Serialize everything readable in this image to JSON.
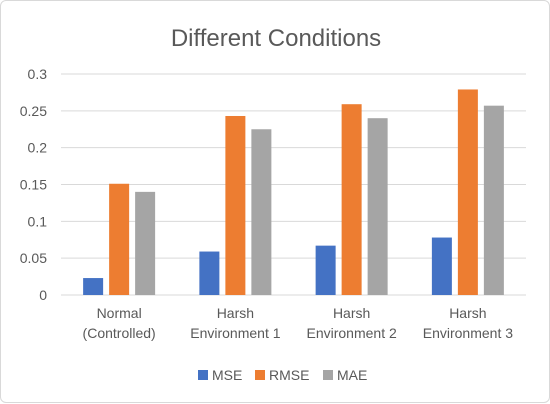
{
  "chart_data": {
    "type": "bar",
    "title": "Different Conditions",
    "categories": [
      [
        "Normal",
        "(Controlled)"
      ],
      [
        "Harsh",
        "Environment 1"
      ],
      [
        "Harsh",
        "Environment 2"
      ],
      [
        "Harsh",
        "Environment 3"
      ]
    ],
    "series": [
      {
        "name": "MSE",
        "color": "#4472c4",
        "values": [
          0.023,
          0.059,
          0.067,
          0.078
        ]
      },
      {
        "name": "RMSE",
        "color": "#ed7d31",
        "values": [
          0.151,
          0.243,
          0.259,
          0.279
        ]
      },
      {
        "name": "MAE",
        "color": "#a5a5a5",
        "values": [
          0.14,
          0.225,
          0.24,
          0.257
        ]
      }
    ],
    "ylim": [
      0,
      0.3
    ],
    "yticks": [
      "0",
      "0.05",
      "0.1",
      "0.15",
      "0.2",
      "0.25",
      "0.3"
    ],
    "grid": true,
    "legend_position": "bottom",
    "gridline_color": "#d9d9d9"
  }
}
